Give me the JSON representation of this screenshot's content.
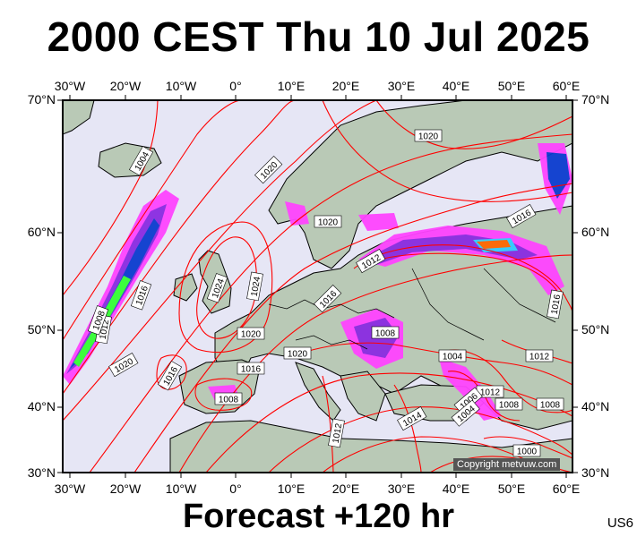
{
  "title": "2000 CEST Thu 10 Jul 2025",
  "footer": "Forecast +120 hr",
  "code": "US6",
  "copyright": "Copyright metvuw.com",
  "longitude_labels": [
    "30°W",
    "20°W",
    "10°W",
    "0°",
    "10°E",
    "20°E",
    "30°E",
    "40°E",
    "50°E",
    "60°E"
  ],
  "latitude_labels": [
    "70°N",
    "60°N",
    "50°N",
    "40°N",
    "30°N"
  ],
  "isobar_labels": [
    {
      "text": "1004"
    },
    {
      "text": "1020"
    },
    {
      "text": "1020"
    },
    {
      "text": "1020"
    },
    {
      "text": "1016"
    },
    {
      "text": "1024"
    },
    {
      "text": "1024"
    },
    {
      "text": "1012"
    },
    {
      "text": "1016"
    },
    {
      "text": "1016"
    },
    {
      "text": "1012"
    },
    {
      "text": "1008"
    },
    {
      "text": "1016"
    },
    {
      "text": "1020"
    },
    {
      "text": "1020"
    },
    {
      "text": "1008"
    },
    {
      "text": "1020"
    },
    {
      "text": "1016"
    },
    {
      "text": "1016"
    },
    {
      "text": "1012"
    },
    {
      "text": "1004"
    },
    {
      "text": "1012"
    },
    {
      "text": "1008"
    },
    {
      "text": "1006"
    },
    {
      "text": "1004"
    },
    {
      "text": "1008"
    },
    {
      "text": "1014"
    },
    {
      "text": "1012"
    },
    {
      "text": "1000"
    },
    {
      "text": "1008"
    }
  ],
  "colors": {
    "sea": "#e6e6f5",
    "land": "#b9c9b6",
    "isobar": "#ff0000",
    "coast": "#000000",
    "precip_light": "#ff44ff",
    "precip_mid": "#8a2be2",
    "precip_heavy": "#0a3ccf",
    "precip_extreme": "#33ff33"
  }
}
